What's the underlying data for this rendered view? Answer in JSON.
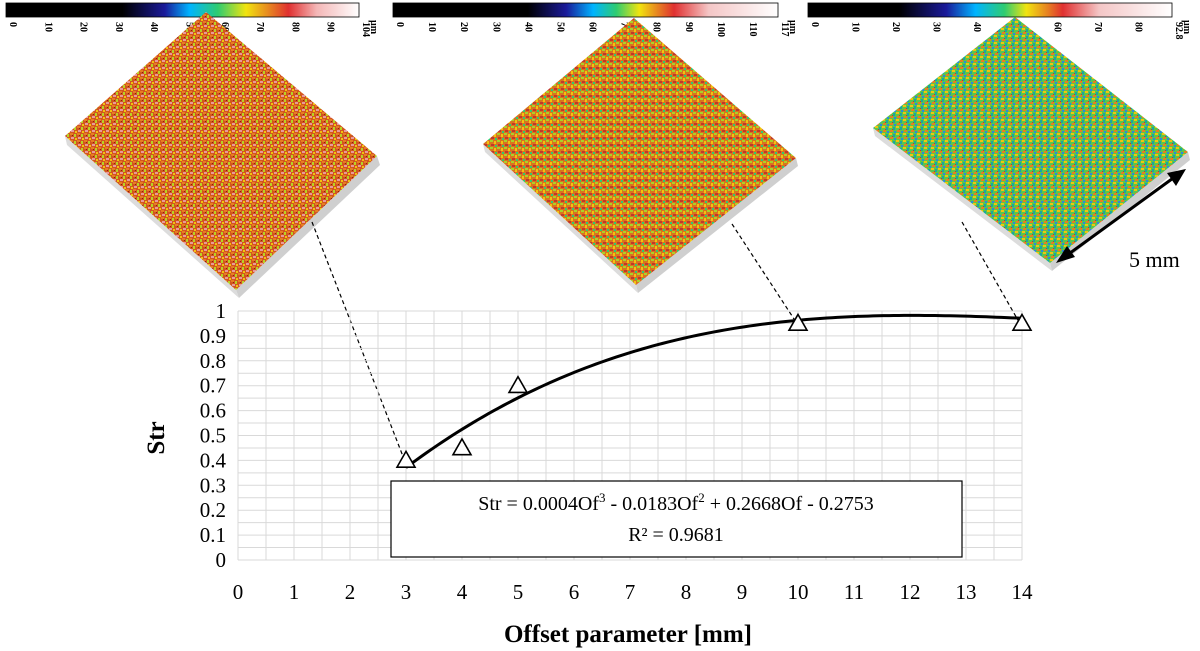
{
  "chart_data": {
    "type": "scatter",
    "xlabel": "Offset parameter [mm]",
    "ylabel": "Str",
    "xlim": [
      0,
      14
    ],
    "ylim": [
      0,
      1
    ],
    "x_ticks": [
      0,
      1,
      2,
      3,
      4,
      5,
      6,
      7,
      8,
      9,
      10,
      11,
      12,
      13,
      14
    ],
    "y_ticks": [
      0,
      0.1,
      0.2,
      0.3,
      0.4,
      0.5,
      0.6,
      0.7,
      0.8,
      0.9,
      1
    ],
    "y_tick_labels": [
      "0",
      "0.1",
      "0.2",
      "0.3",
      "0.4",
      "0.5",
      "0.6",
      "0.7",
      "0.8",
      "0.9",
      "1"
    ],
    "grid": true,
    "marker": "open-triangle",
    "series": [
      {
        "points": [
          {
            "x": 3,
            "y": 0.4
          },
          {
            "x": 4,
            "y": 0.45
          },
          {
            "x": 5,
            "y": 0.7
          },
          {
            "x": 10,
            "y": 0.95
          },
          {
            "x": 14,
            "y": 0.95
          }
        ]
      }
    ],
    "trendline": {
      "type": "polynomial",
      "order": 3,
      "coefficients": [
        0.0004,
        -0.0183,
        0.2668,
        -0.2753
      ],
      "x_range": [
        3,
        14
      ]
    },
    "equation_box": {
      "line1": {
        "lhs": "Str = 0.0004Of",
        "sup1": "3",
        "mid1": " - 0.0183Of",
        "sup2": "2",
        "rhs": " + 0.2668Of - 0.2753"
      },
      "line2": "R² = 0.9681"
    },
    "annotations": {
      "scale_label": "5 mm"
    }
  },
  "colorbars": [
    {
      "ticks": [
        "0",
        "10",
        "20",
        "30",
        "40",
        "50",
        "60",
        "70",
        "80",
        "90",
        "104"
      ],
      "unit": "µm"
    },
    {
      "ticks": [
        "0",
        "10",
        "20",
        "30",
        "40",
        "50",
        "60",
        "70",
        "80",
        "90",
        "100",
        "110",
        "117"
      ],
      "unit": "µm"
    },
    {
      "ticks": [
        "0",
        "10",
        "20",
        "30",
        "40",
        "50",
        "60",
        "70",
        "80",
        "92.8"
      ],
      "unit": "µm"
    }
  ],
  "colors": {
    "grid": "#d9d9d9",
    "line": "#000000",
    "surface_palette": [
      "#c0392b",
      "#e67e22",
      "#f1c40f",
      "#9acd32",
      "#2ecc71",
      "#1abc9c",
      "#3498db",
      "#e8a0a0"
    ]
  }
}
